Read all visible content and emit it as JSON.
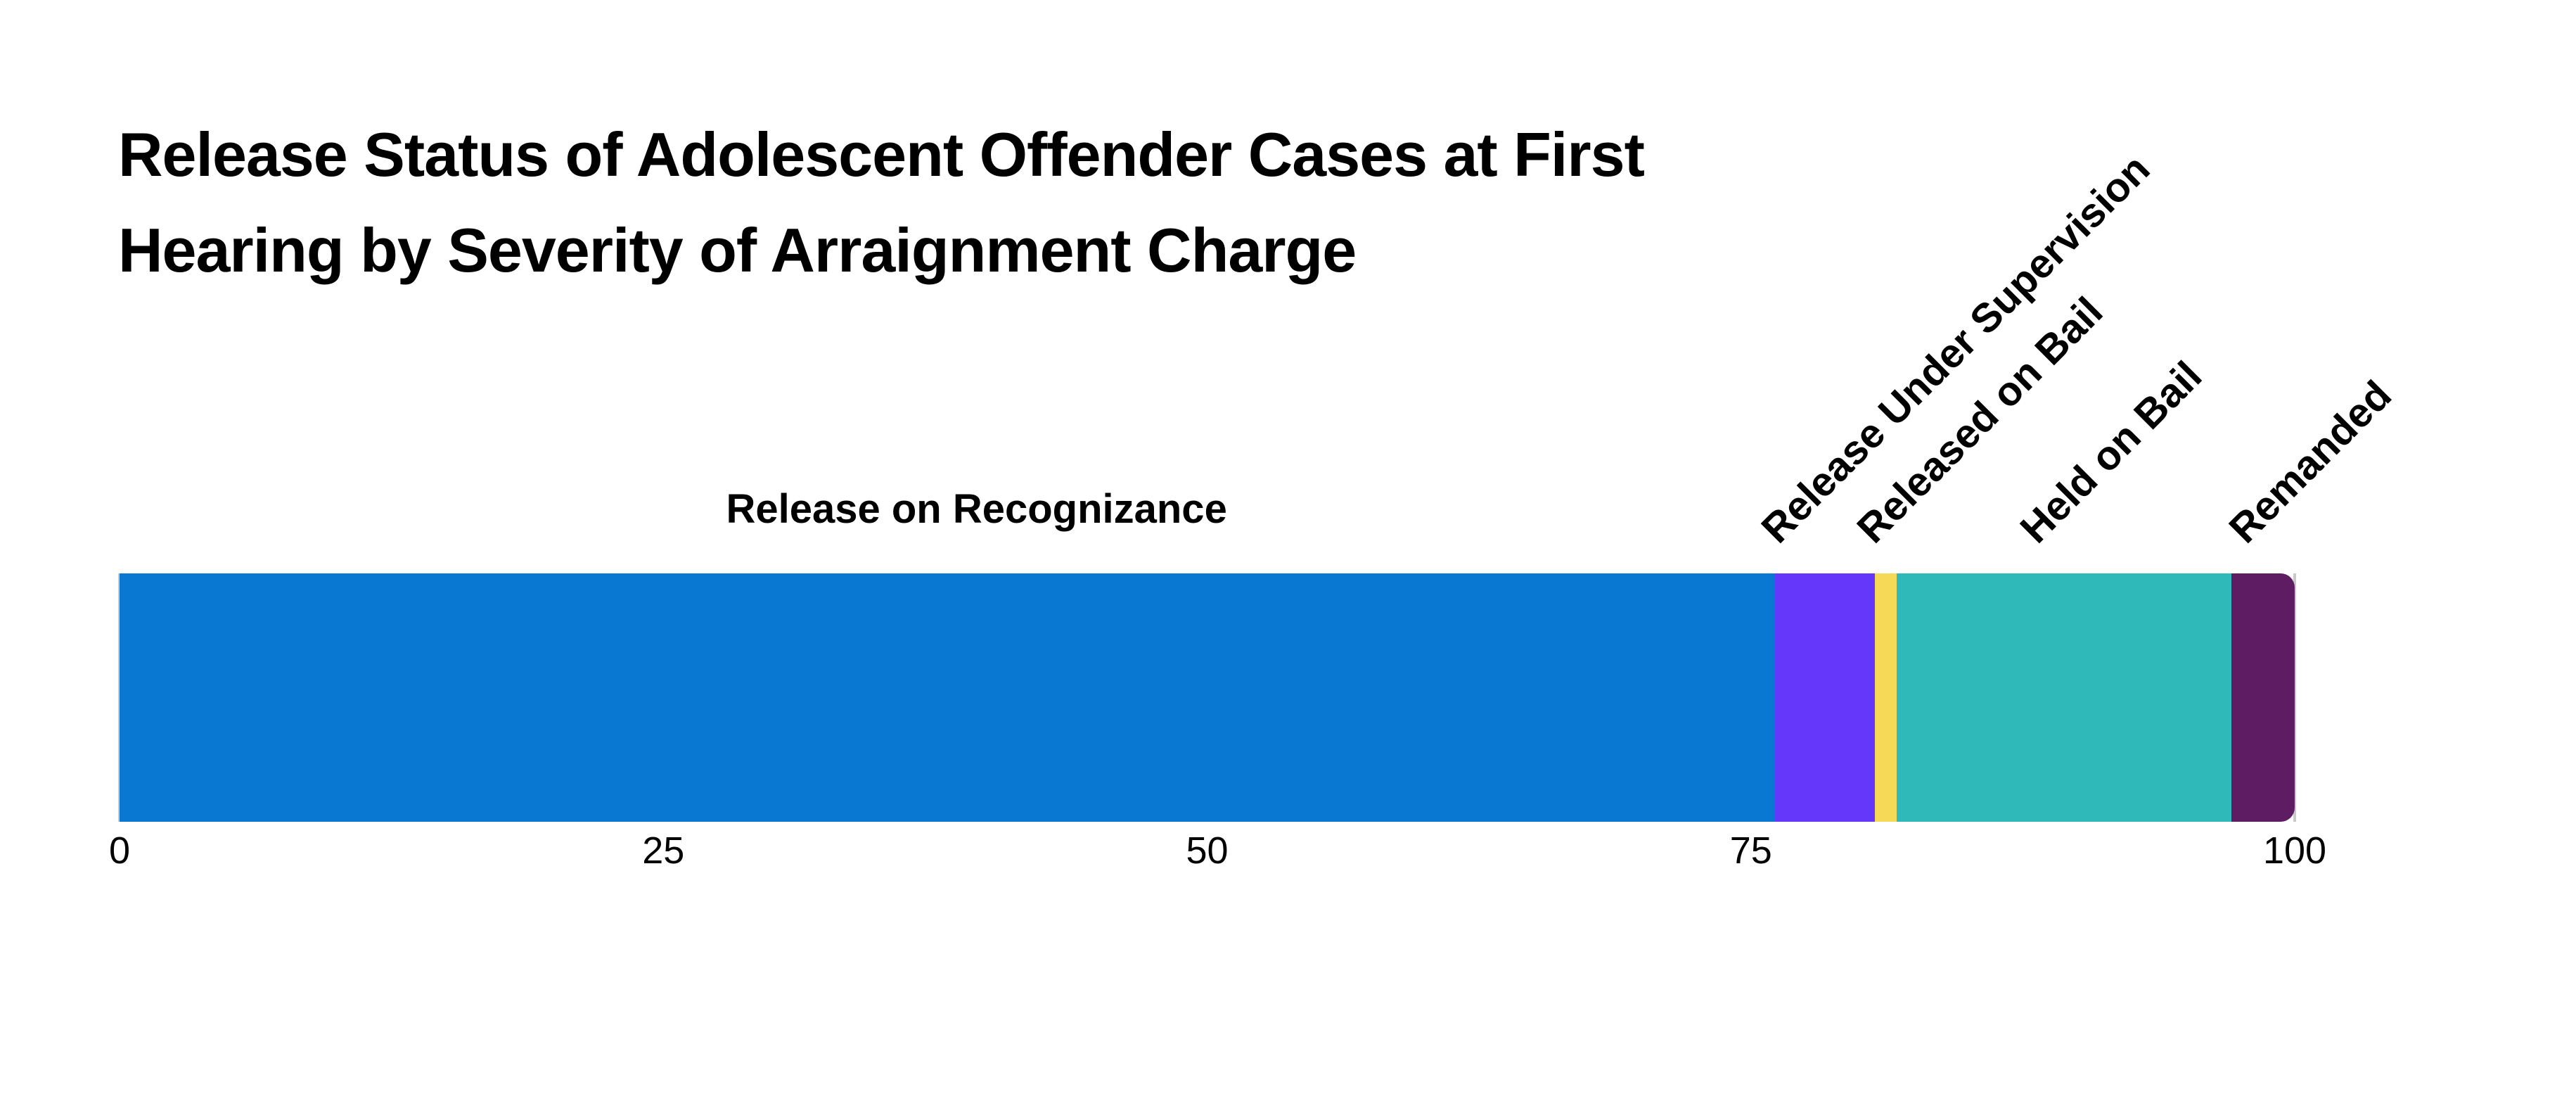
{
  "title": {
    "lines": [
      "Release Status of Adolescent Offender Cases at First",
      "Hearing by Severity of Arraignment Charge"
    ]
  },
  "chart_data": {
    "type": "bar",
    "orientation": "horizontal",
    "stacked": true,
    "title": "Release Status of Adolescent Offender Cases at First Hearing by Severity of Arraignment Charge",
    "xlabel": "",
    "ylabel": "",
    "xlim": [
      0,
      100
    ],
    "x_ticks": [
      0,
      25,
      50,
      75,
      100
    ],
    "grid": "off",
    "legend": "none",
    "axis_tick_line_color": "#c9c9c9",
    "text_color": "#000000",
    "background_color": "#ffffff",
    "bar_end_style": "rounded-right",
    "segments": [
      {
        "label": "Release on Recognizance",
        "value": 76.1,
        "color": "#0878d3",
        "label_placement": "horizontal-above-center",
        "label_anchor": 39.4
      },
      {
        "label": "Release Under Supervision",
        "value": 4.6,
        "color": "#6537fa",
        "label_placement": "rotated-45",
        "label_anchor": 76.6
      },
      {
        "label": "Released on Bail",
        "value": 1.0,
        "color": "#f5d957",
        "label_placement": "rotated-45",
        "label_anchor": 81.0
      },
      {
        "label": "Held on Bail",
        "value": 15.4,
        "color": "#2fb9b9",
        "label_placement": "rotated-45",
        "label_anchor": 88.5
      },
      {
        "label": "Remanded",
        "value": 2.9,
        "color": "#5e1c62",
        "label_placement": "rotated-45",
        "label_anchor": 98.1
      }
    ]
  }
}
